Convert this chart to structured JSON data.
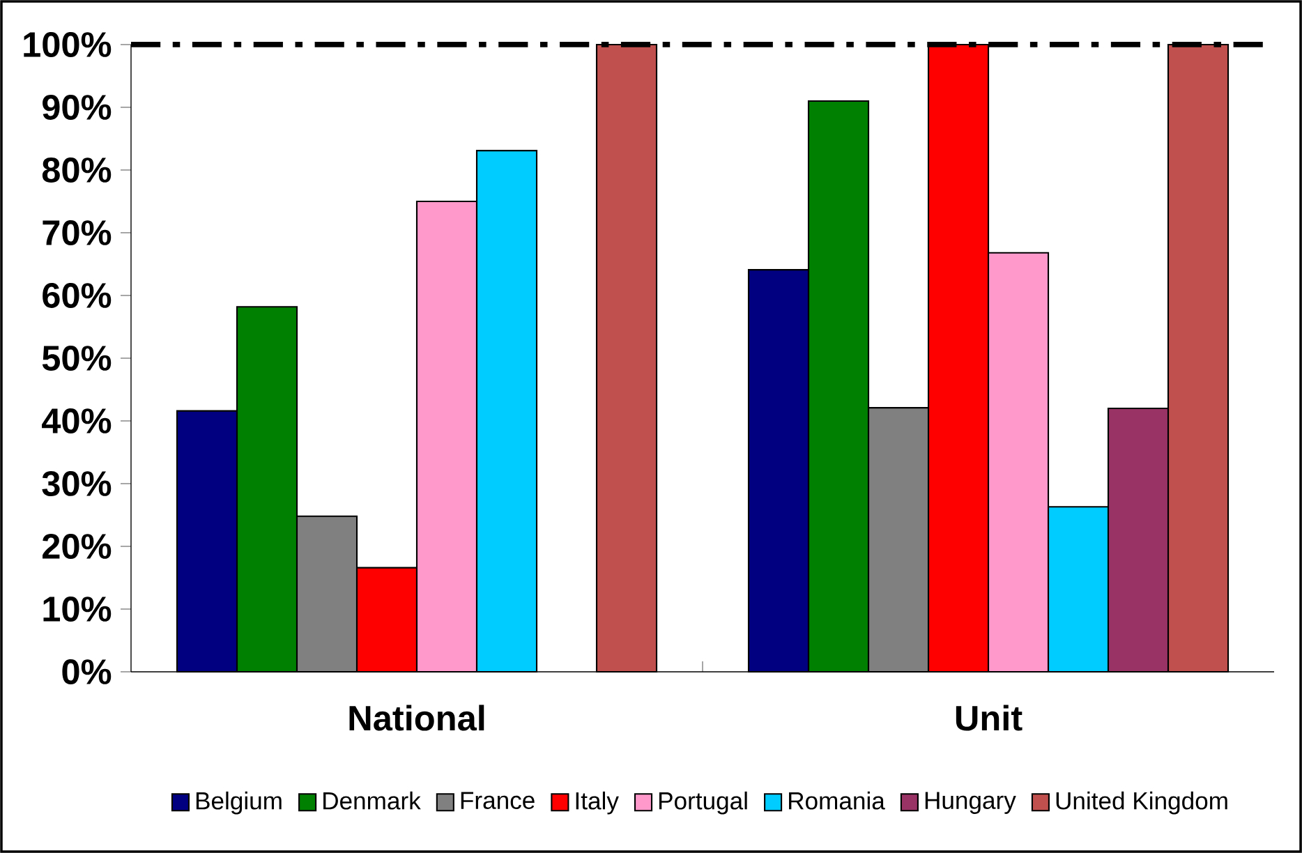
{
  "chart_data": {
    "type": "bar",
    "categories": [
      "National",
      "Unit"
    ],
    "series": [
      {
        "name": "Belgium",
        "color": "#000080",
        "values": [
          41.6,
          64.1
        ]
      },
      {
        "name": "Denmark",
        "color": "#008000",
        "values": [
          58.2,
          91.0
        ]
      },
      {
        "name": "France",
        "color": "#808080",
        "values": [
          24.8,
          42.1
        ]
      },
      {
        "name": "Italy",
        "color": "#ff0000",
        "values": [
          16.6,
          100
        ]
      },
      {
        "name": "Portugal",
        "color": "#ff99cc",
        "values": [
          75.0,
          66.8
        ]
      },
      {
        "name": "Romania",
        "color": "#00ccff",
        "values": [
          83.1,
          26.3
        ]
      },
      {
        "name": "Hungary",
        "color": "#993366",
        "values": [
          null,
          42.0
        ]
      },
      {
        "name": "United Kingdom",
        "color": "#c0504d",
        "values": [
          100,
          100
        ]
      }
    ],
    "ylim": [
      0,
      100
    ],
    "yticks": [
      {
        "value": 0,
        "label": "0%"
      },
      {
        "value": 10,
        "label": "10%"
      },
      {
        "value": 20,
        "label": "20%"
      },
      {
        "value": 30,
        "label": "30%"
      },
      {
        "value": 40,
        "label": "40%"
      },
      {
        "value": 50,
        "label": "50%"
      },
      {
        "value": 60,
        "label": "60%"
      },
      {
        "value": 70,
        "label": "70%"
      },
      {
        "value": 80,
        "label": "80%"
      },
      {
        "value": 90,
        "label": "90%"
      },
      {
        "value": 100,
        "label": "100%"
      }
    ],
    "ref_lines": [
      {
        "axis": "y",
        "value": 100,
        "color": "#000000",
        "line_style": "dashdot"
      }
    ],
    "legend": "bottom",
    "grid": false
  }
}
